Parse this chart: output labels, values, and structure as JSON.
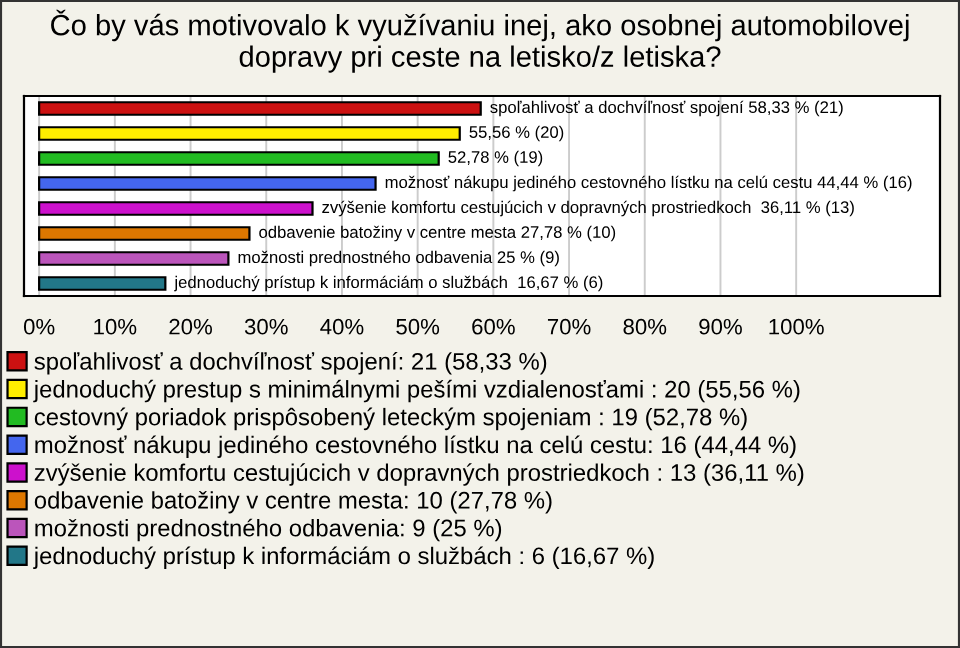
{
  "chart_data": {
    "type": "bar",
    "orientation": "horizontal",
    "title": "Čo by vás motivovalo k využívaniu inej, ako osobnej automobilovej dopravy pri ceste na letisko/z letiska?",
    "categories": [
      null,
      null,
      null,
      null,
      null,
      null,
      null,
      null
    ],
    "series": [
      {
        "name": "spoľahlivosť a dochvíľnosť spojení: 21 (58,33 %)",
        "color": "#cc1111",
        "values": [
          58.33,
          null,
          null,
          null,
          null,
          null,
          null,
          null
        ],
        "value_labels": [
          "spoľahlivosť a dochvíľnosť spojení 58,33 % (21)",
          null,
          null,
          null,
          null,
          null,
          null,
          null
        ]
      },
      {
        "name": "jednoduchý prestup s minimálnymi pešími vzdialenosťami : 20 (55,56 %)",
        "color": "#ffee00",
        "values": [
          null,
          55.56,
          null,
          null,
          null,
          null,
          null,
          null
        ],
        "value_labels": [
          null,
          "55,56 % (20)",
          null,
          null,
          null,
          null,
          null,
          null
        ]
      },
      {
        "name": "cestovný poriadok prispôsobený leteckým spojeniam : 19 (52,78 %)",
        "color": "#22bb22",
        "values": [
          null,
          null,
          52.78,
          null,
          null,
          null,
          null,
          null
        ],
        "value_labels": [
          null,
          null,
          "52,78 % (19)",
          null,
          null,
          null,
          null,
          null
        ]
      },
      {
        "name": "možnosť nákupu jediného cestovného lístku na celú cestu: 16 (44,44 %)",
        "color": "#4466ee",
        "values": [
          null,
          null,
          null,
          44.44,
          null,
          null,
          null,
          null
        ],
        "value_labels": [
          null,
          null,
          null,
          "možnosť nákupu jediného cestovného lístku na celú cestu 44,44 % (16)",
          null,
          null,
          null,
          null
        ]
      },
      {
        "name": "zvýšenie komfortu cestujúcich v dopravných prostriedkoch : 13 (36,11 %)",
        "color": "#cc11cc",
        "values": [
          null,
          null,
          null,
          null,
          36.11,
          null,
          null,
          null
        ],
        "value_labels": [
          null,
          null,
          null,
          null,
          "zvýšenie komfortu cestujúcich v dopravných prostriedkoch  36,11 % (13)",
          null,
          null,
          null
        ]
      },
      {
        "name": "odbavenie batožiny v centre mesta: 10 (27,78 %)",
        "color": "#dd7700",
        "values": [
          null,
          null,
          null,
          null,
          null,
          27.78,
          null,
          null
        ],
        "value_labels": [
          null,
          null,
          null,
          null,
          null,
          "odbavenie batožiny v centre mesta 27,78 % (10)",
          null,
          null
        ]
      },
      {
        "name": "možnosti prednostného odbavenia: 9 (25 %)",
        "color": "#bb55bb",
        "values": [
          null,
          null,
          null,
          null,
          null,
          null,
          25,
          null
        ],
        "value_labels": [
          null,
          null,
          null,
          null,
          null,
          null,
          "možnosti prednostného odbavenia 25 % (9)",
          null
        ]
      },
      {
        "name": "jednoduchý prístup k informáciám o službách : 6 (16,67 %)",
        "color": "#227788",
        "values": [
          null,
          null,
          null,
          null,
          null,
          null,
          null,
          16.67
        ],
        "value_labels": [
          null,
          null,
          null,
          null,
          null,
          null,
          null,
          "jednoduchý prístup k informáciám o službách  16,67 % (6)"
        ]
      }
    ],
    "xlim": [
      -2,
      119
    ],
    "xticks": [
      {
        "value": 0,
        "label": "0%"
      },
      {
        "value": 10,
        "label": "10%"
      },
      {
        "value": 20,
        "label": "20%"
      },
      {
        "value": 30,
        "label": "30%"
      },
      {
        "value": 40,
        "label": "40%"
      },
      {
        "value": 50,
        "label": "50%"
      },
      {
        "value": 60,
        "label": "60%"
      },
      {
        "value": 70,
        "label": "70%"
      },
      {
        "value": 80,
        "label": "80%"
      },
      {
        "value": 90,
        "label": "90%"
      },
      {
        "value": 100,
        "label": "100%"
      }
    ],
    "grid": "x",
    "legend": "bottom"
  }
}
